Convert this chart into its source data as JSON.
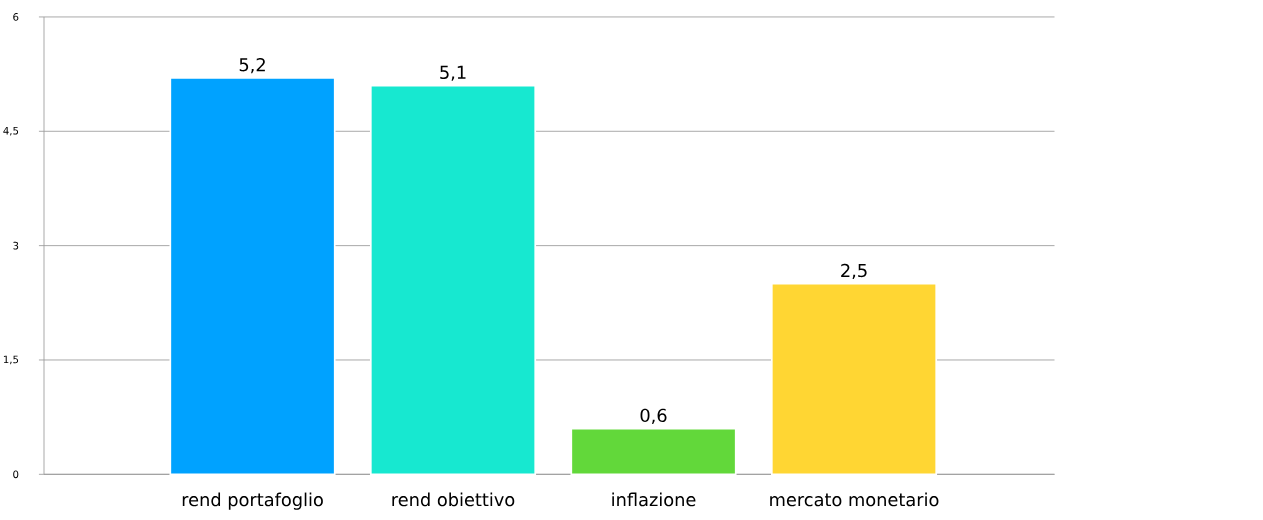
{
  "chart_data": {
    "type": "bar",
    "categories": [
      "rend portafoglio",
      "rend obiettivo",
      "inflazione",
      "mercato monetario"
    ],
    "values": [
      5.2,
      5.1,
      0.6,
      2.5
    ],
    "colors": [
      "#00a2ff",
      "#17e8d0",
      "#62d83a",
      "#ffd633"
    ],
    "value_labels": [
      "5,2",
      "5,1",
      "0,6",
      "2,5"
    ],
    "ylim": [
      0,
      6
    ],
    "yticks": [
      0,
      {
        "value": 1.5,
        "label": "1,5"
      },
      3,
      {
        "value": 4.5,
        "label": "4,5"
      },
      6
    ],
    "grid": "y"
  }
}
